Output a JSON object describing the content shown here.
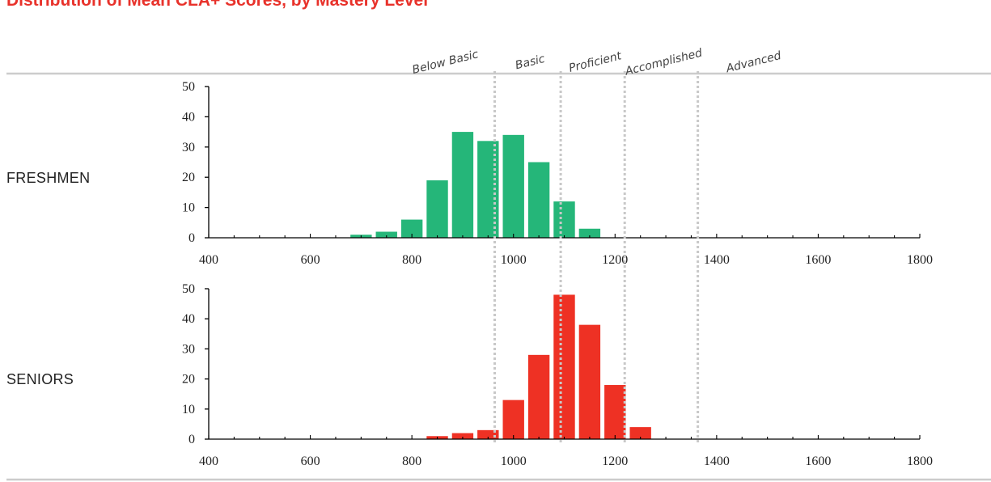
{
  "title": "Distribution of Mean CLA+ Scores, by Mastery Level",
  "colors": {
    "title": "#e8322b",
    "freshmen": "#25b679",
    "seniors": "#ee3124",
    "threshold": "#c8c8c8",
    "rule": "#cccccc",
    "axis": "#000000"
  },
  "chart_data": {
    "type": "bar",
    "x_range": [
      400,
      1800
    ],
    "x_ticks": [
      400,
      600,
      800,
      1000,
      1200,
      1400,
      1600,
      1800
    ],
    "bin_width": 50,
    "y_range": [
      0,
      50
    ],
    "y_ticks": [
      0,
      10,
      20,
      30,
      40,
      50
    ],
    "mastery_levels": [
      {
        "name": "Below Basic",
        "cutoff": 963
      },
      {
        "name": "Basic",
        "cutoff": 1093
      },
      {
        "name": "Proficient",
        "cutoff": 1219
      },
      {
        "name": "Accomplished",
        "cutoff": 1363
      },
      {
        "name": "Advanced",
        "cutoff": null
      }
    ],
    "series": [
      {
        "name": "FRESHMEN",
        "x": [
          700,
          750,
          800,
          850,
          900,
          950,
          1000,
          1050,
          1100,
          1150
        ],
        "values": [
          1,
          2,
          6,
          19,
          35,
          32,
          34,
          25,
          12,
          3
        ]
      },
      {
        "name": "SENIORS",
        "x": [
          850,
          900,
          950,
          1000,
          1050,
          1100,
          1150,
          1200,
          1250
        ],
        "values": [
          1,
          2,
          3,
          13,
          28,
          48,
          38,
          18,
          4
        ]
      }
    ]
  }
}
